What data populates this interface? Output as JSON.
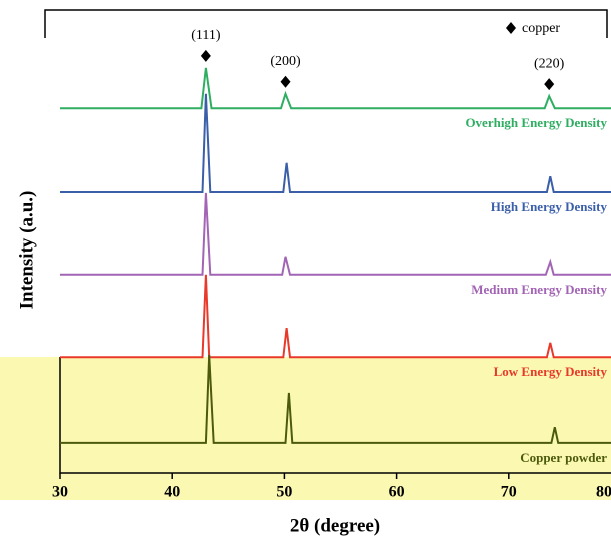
{
  "chart_data": {
    "type": "line",
    "x_label": "2θ (degree)",
    "y_label": "Intensity (a.u.)",
    "xlim": [
      30,
      80
    ],
    "xticks": [
      30,
      40,
      50,
      60,
      70,
      80
    ],
    "ylim": [
      0,
      100
    ],
    "legend": {
      "label": "copper",
      "corner": "upper right"
    },
    "annotations": [
      {
        "text": "(111)",
        "x": 43.0
      },
      {
        "text": "(200)",
        "x": 50.1
      },
      {
        "text": "(220)",
        "x": 73.6
      }
    ],
    "series": [
      {
        "name": "Overhigh Energy Density",
        "color": "#2fae62",
        "x": [
          30,
          42.6,
          43.0,
          43.5,
          49.7,
          50.1,
          50.6,
          73.2,
          73.6,
          74.1,
          80
        ],
        "values": [
          78.8,
          78.8,
          87.5,
          78.8,
          78.8,
          81.9,
          78.8,
          78.8,
          81.4,
          78.8,
          78.8
        ]
      },
      {
        "name": "High Energy Density",
        "color": "#3a5ea8",
        "x": [
          30,
          42.7,
          43.0,
          43.4,
          49.9,
          50.2,
          50.5,
          73.4,
          73.7,
          74.0,
          80
        ],
        "values": [
          60.7,
          60.7,
          81.9,
          60.7,
          60.7,
          67.0,
          60.7,
          60.7,
          64.1,
          60.7,
          60.7
        ]
      },
      {
        "name": "Medium Energy Density",
        "color": "#a264b4",
        "x": [
          30,
          42.7,
          43.0,
          43.4,
          49.8,
          50.1,
          50.5,
          73.3,
          73.7,
          74.0,
          80
        ],
        "values": [
          42.8,
          42.8,
          60.5,
          42.8,
          42.8,
          46.7,
          42.8,
          42.8,
          45.6,
          42.8,
          42.8
        ]
      },
      {
        "name": "Low Energy Density",
        "color": "#e8392a",
        "x": [
          30,
          42.7,
          43.0,
          43.3,
          49.9,
          50.2,
          50.5,
          73.4,
          73.7,
          74.0,
          80
        ],
        "values": [
          25.0,
          25.0,
          42.8,
          25.0,
          25.0,
          31.3,
          25.0,
          25.0,
          28.1,
          25.0,
          25.0
        ]
      },
      {
        "name": "Copper powder",
        "color": "#4b5a0c",
        "x": [
          30,
          43.0,
          43.3,
          43.7,
          50.1,
          50.4,
          50.7,
          73.8,
          74.1,
          74.4,
          80
        ],
        "values": [
          6.5,
          6.5,
          25.5,
          6.5,
          6.5,
          17.3,
          6.5,
          6.5,
          9.9,
          6.5,
          6.5
        ]
      }
    ]
  }
}
